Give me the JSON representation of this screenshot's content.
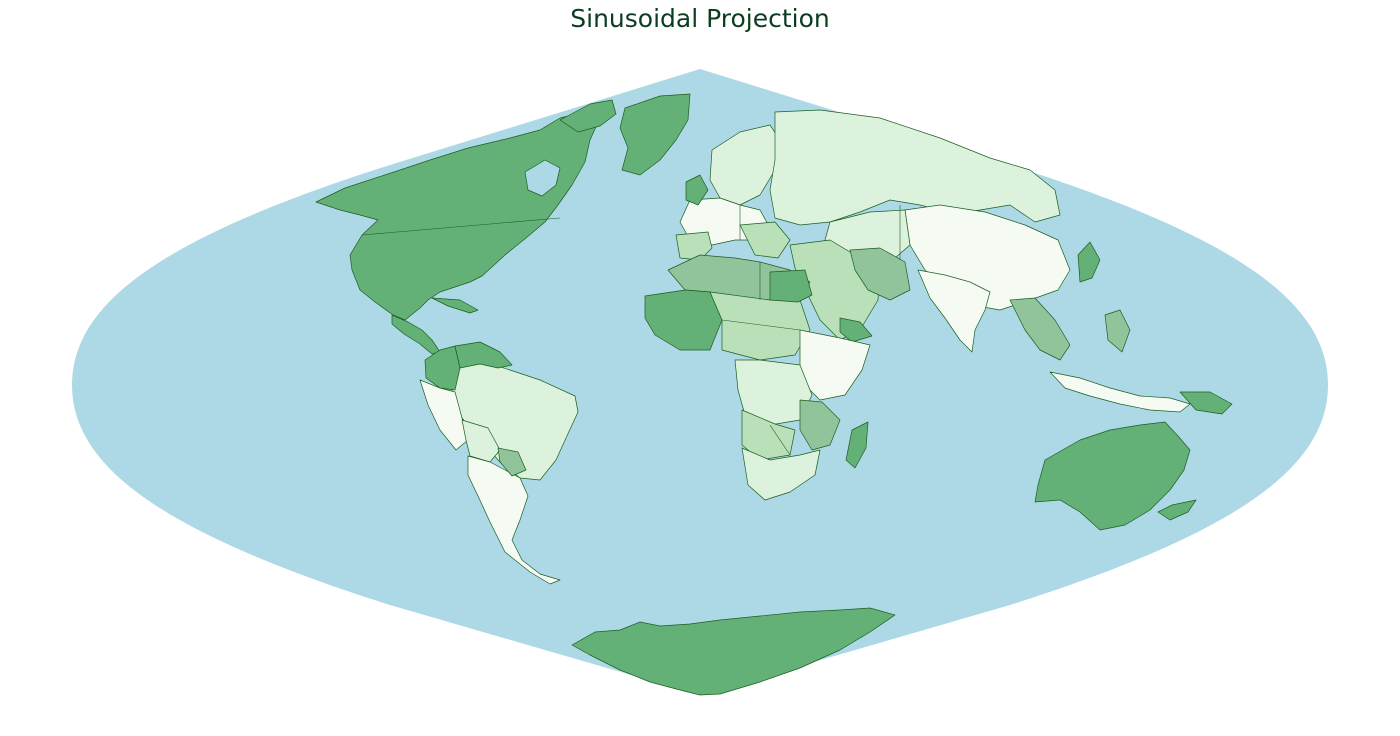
{
  "title": "Sinusoidal Projection",
  "colors": {
    "ocean": "#add8e6",
    "boundary": "#1b5e20",
    "land_dark": "#63b176",
    "land_medium": "#91c49b",
    "land_light": "#b9e0b9",
    "land_pale": "#dcf2dc",
    "land_white": "#f5fbf3"
  }
}
